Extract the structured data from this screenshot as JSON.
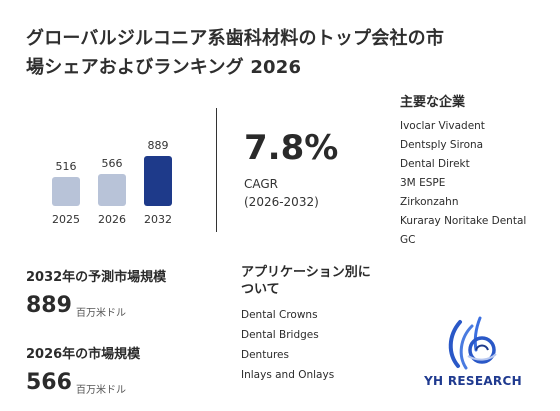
{
  "title": "グローバルジルコニア系歯科材料のトップ会社の市場シェアおよびランキング 2026",
  "chart_data": {
    "type": "bar",
    "categories": [
      "2025",
      "2026",
      "2032"
    ],
    "values": [
      516,
      566,
      889
    ],
    "colors": [
      "#b8c3d8",
      "#b8c3d8",
      "#1e3a8a"
    ]
  },
  "cagr": {
    "value": "7.8%",
    "label": "CAGR",
    "period": "(2026-2032)"
  },
  "companies": {
    "title": "主要な企業",
    "items": [
      "Ivoclar Vivadent",
      "Dentsply Sirona",
      "Dental Direkt",
      "3M ESPE",
      "Zirkonzahn",
      "Kuraray Noritake Dental",
      "GC"
    ]
  },
  "metrics": {
    "m2032": {
      "title": "2032年の予測市場規模",
      "value": "889",
      "unit": "百万米ドル"
    },
    "m2026": {
      "title": "2026年の市場規模",
      "value": "566",
      "unit": "百万米ドル"
    }
  },
  "applications": {
    "title": "アプリケーション別について",
    "items": [
      "Dental Crowns",
      "Dental Bridges",
      "Dentures",
      "Inlays and Onlays"
    ]
  },
  "logo": {
    "text": "YH RESEARCH"
  }
}
